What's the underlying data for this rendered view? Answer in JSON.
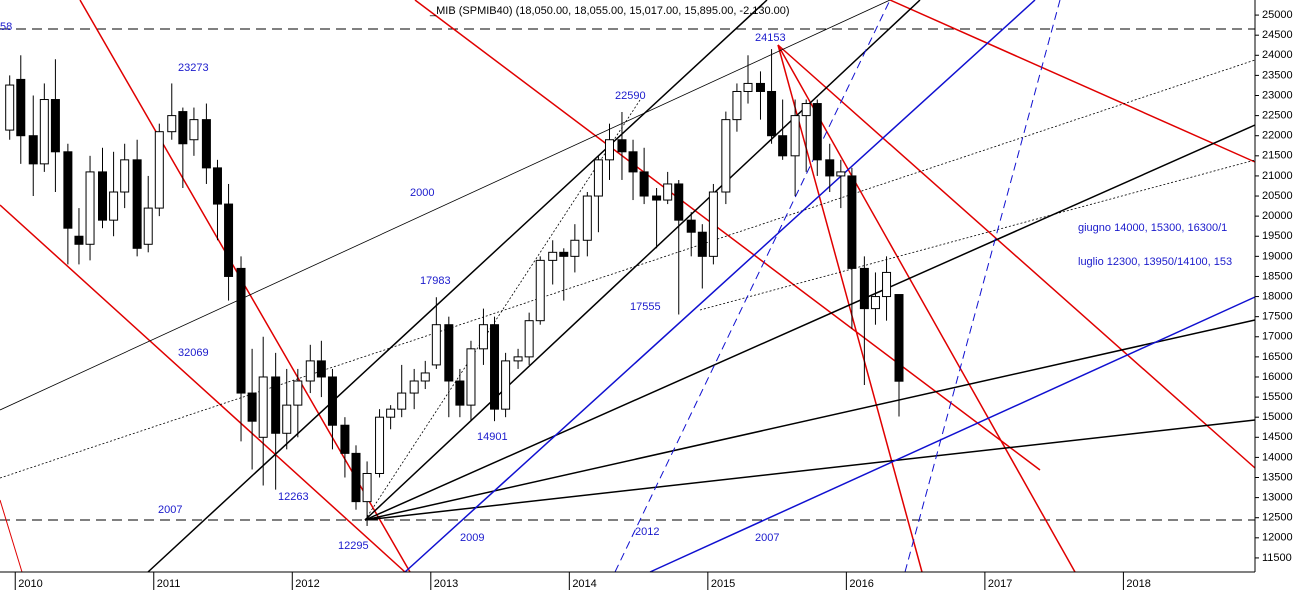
{
  "chart_data": {
    "type": "candlestick",
    "title": "_MIB (SPMIB40) (18,050.00, 18,055.00, 15,017.00, 15,895.00, -2,130.00)",
    "x": [
      2009.96,
      2010.04,
      2010.13,
      2010.21,
      2010.29,
      2010.38,
      2010.46,
      2010.54,
      2010.63,
      2010.71,
      2010.79,
      2010.88,
      2010.96,
      2011.04,
      2011.13,
      2011.21,
      2011.29,
      2011.38,
      2011.46,
      2011.54,
      2011.63,
      2011.71,
      2011.79,
      2011.88,
      2011.96,
      2012.04,
      2012.13,
      2012.21,
      2012.29,
      2012.38,
      2012.46,
      2012.54,
      2012.63,
      2012.71,
      2012.79,
      2012.88,
      2012.96,
      2013.04,
      2013.13,
      2013.21,
      2013.29,
      2013.38,
      2013.46,
      2013.54,
      2013.63,
      2013.71,
      2013.79,
      2013.88,
      2013.96,
      2014.04,
      2014.13,
      2014.21,
      2014.29,
      2014.38,
      2014.46,
      2014.54,
      2014.63,
      2014.71,
      2014.79,
      2014.88,
      2014.96,
      2015.04,
      2015.13,
      2015.21,
      2015.29,
      2015.38,
      2015.46,
      2015.54,
      2015.63,
      2015.71,
      2015.79,
      2015.88,
      2015.96,
      2016.04,
      2016.13,
      2016.21,
      2016.29,
      2016.38
    ],
    "open": [
      22140,
      23400,
      22000,
      21300,
      22900,
      21600,
      19500,
      19300,
      21100,
      19900,
      20600,
      21400,
      19300,
      20200,
      22100,
      22600,
      21900,
      22400,
      21200,
      20300,
      18700,
      15600,
      14500,
      16000,
      14600,
      15300,
      15900,
      16400,
      16000,
      14800,
      14100,
      12900,
      13600,
      15000,
      15200,
      15600,
      15900,
      16300,
      17300,
      15900,
      15300,
      16700,
      17300,
      15200,
      16400,
      16500,
      17400,
      18900,
      19100,
      19000,
      19400,
      20500,
      21400,
      21900,
      21600,
      21100,
      20500,
      20400,
      20800,
      19900,
      19600,
      19000,
      20600,
      22400,
      23100,
      23300,
      23100,
      22000,
      21500,
      22500,
      22800,
      21400,
      21000,
      21000,
      18700,
      17700,
      18000,
      18050
    ],
    "high": [
      23500,
      24000,
      23000,
      23300,
      23900,
      21800,
      20200,
      21500,
      21700,
      21600,
      21800,
      21900,
      21000,
      22300,
      23300,
      22700,
      22700,
      22800,
      21400,
      20800,
      19000,
      16700,
      17000,
      16600,
      16200,
      16200,
      16800,
      16900,
      16200,
      15000,
      14300,
      13900,
      15200,
      15300,
      16300,
      16200,
      16400,
      17983,
      17500,
      16200,
      16900,
      17700,
      17500,
      16600,
      16700,
      17600,
      19000,
      19400,
      19200,
      19800,
      20600,
      21500,
      22300,
      22590,
      21900,
      21700,
      20700,
      21100,
      20900,
      20100,
      19800,
      20800,
      22600,
      23300,
      24000,
      23600,
      24153,
      22900,
      22900,
      22900,
      22900,
      21800,
      21400,
      21200,
      19000,
      18600,
      19000,
      18055
    ],
    "low": [
      21900,
      21300,
      20500,
      21100,
      20600,
      18800,
      18800,
      18900,
      19700,
      19500,
      20200,
      19000,
      19100,
      20000,
      21900,
      20700,
      21500,
      20800,
      19400,
      17900,
      14400,
      13700,
      13300,
      13200,
      14200,
      14500,
      15600,
      15500,
      14200,
      13500,
      12700,
      12295,
      13500,
      14700,
      15000,
      15200,
      15700,
      16200,
      15000,
      15000,
      14900,
      16300,
      14901,
      15000,
      16200,
      16300,
      17300,
      18300,
      17900,
      18600,
      19000,
      19600,
      20900,
      20900,
      20400,
      20300,
      19200,
      20300,
      17555,
      19000,
      18200,
      18800,
      20300,
      22100,
      22800,
      22400,
      21800,
      21400,
      20500,
      21100,
      21000,
      20600,
      20200,
      17200,
      15800,
      17300,
      17400,
      15017
    ],
    "close": [
      23260,
      22000,
      21300,
      22900,
      21600,
      19700,
      19300,
      21100,
      19900,
      20600,
      21400,
      19200,
      20200,
      22100,
      22500,
      21800,
      22400,
      21200,
      20300,
      18500,
      15600,
      14900,
      16000,
      14600,
      15300,
      15900,
      16400,
      16000,
      14800,
      14100,
      12900,
      13600,
      15000,
      15200,
      15600,
      15900,
      16100,
      17300,
      15900,
      15300,
      16700,
      17300,
      15200,
      16400,
      16500,
      17400,
      18900,
      19100,
      19000,
      19400,
      20500,
      21400,
      21900,
      21600,
      21100,
      20500,
      20400,
      20800,
      19900,
      19600,
      19000,
      20600,
      22400,
      23100,
      23300,
      23100,
      22000,
      21500,
      22500,
      22800,
      21400,
      21000,
      21100,
      18700,
      17700,
      18000,
      18600,
      15895
    ],
    "xlim": [
      2009.89,
      2018.95
    ],
    "xticks": [
      {
        "value": 2010,
        "label": "2010"
      },
      {
        "value": 2011,
        "label": "2011"
      },
      {
        "value": 2012,
        "label": "2012"
      },
      {
        "value": 2013,
        "label": "2013"
      },
      {
        "value": 2014,
        "label": "2014"
      },
      {
        "value": 2015,
        "label": "2015"
      },
      {
        "value": 2016,
        "label": "2016"
      },
      {
        "value": 2017,
        "label": "2017"
      },
      {
        "value": 2018,
        "label": "2018"
      }
    ],
    "ylim": [
      11150,
      25375
    ],
    "yticks": [
      11500,
      12000,
      12500,
      13000,
      13500,
      14000,
      14500,
      15000,
      15500,
      16000,
      16500,
      17000,
      17500,
      18000,
      18500,
      19000,
      19500,
      20000,
      20500,
      21000,
      21500,
      22000,
      22500,
      23000,
      23500,
      24000,
      24500,
      25000
    ],
    "annotations": [
      "58",
      "23273",
      "2000",
      "17983",
      "32069",
      "2007",
      "12263",
      "12295",
      "2009",
      "14901",
      "22590",
      "17555",
      "24153",
      "2012",
      "2007",
      "giugno  14000, 15300,  16300/1",
      "luglio 12300,  13950/14100, 153"
    ]
  }
}
